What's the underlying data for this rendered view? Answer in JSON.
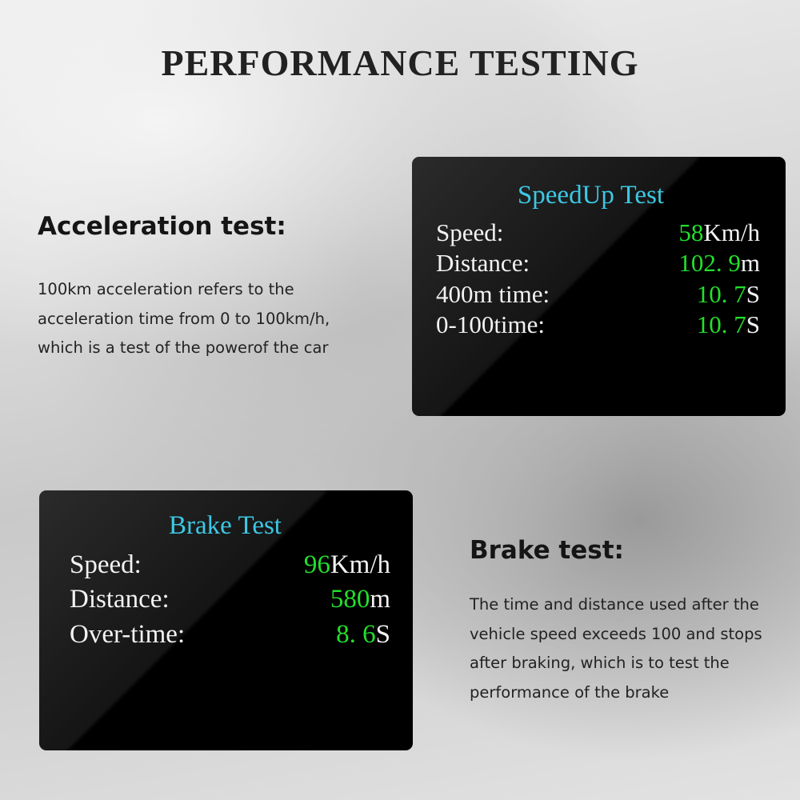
{
  "title": "PERFORMANCE TESTING",
  "acceleration": {
    "heading": "Acceleration test:",
    "lines": [
      "100km acceleration refers to the",
      "acceleration time from 0 to 100km/h,",
      "which is a test of the powerof the car"
    ]
  },
  "brake": {
    "heading": "Brake test:",
    "lines": [
      "The time and distance used after the",
      "vehicle speed exceeds 100 and stops",
      "after braking, which is to test the",
      "performance of the brake"
    ]
  },
  "speedup_panel": {
    "title": "SpeedUp Test",
    "rows": [
      {
        "label": "Speed:",
        "value": "58",
        "unit": "Km/h"
      },
      {
        "label": "Distance:",
        "value": "102. 9",
        "unit": "m"
      },
      {
        "label": "400m time:",
        "value": "10. 7",
        "unit": "S"
      },
      {
        "label": "0-100time:",
        "value": "10. 7",
        "unit": "S"
      }
    ]
  },
  "brake_panel": {
    "title": "Brake Test",
    "rows": [
      {
        "label": "Speed:",
        "value": "96",
        "unit": "Km/h"
      },
      {
        "label": "Distance:",
        "value": "580",
        "unit": "m"
      },
      {
        "label": "Over-time:",
        "value": "8. 6",
        "unit": "S"
      }
    ]
  },
  "colors": {
    "title_cyan": "#3cc8e4",
    "value_green": "#22e02a"
  }
}
